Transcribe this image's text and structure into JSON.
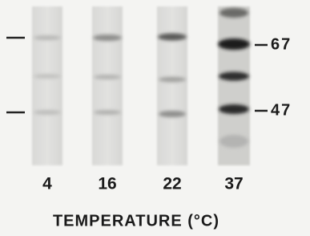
{
  "lanes": [
    {
      "label": "4"
    },
    {
      "label": "16"
    },
    {
      "label": "22"
    },
    {
      "label": "37"
    }
  ],
  "markers": [
    {
      "label": "67"
    },
    {
      "label": "47"
    }
  ],
  "xlabel": "TEMPERATURE (°C)"
}
